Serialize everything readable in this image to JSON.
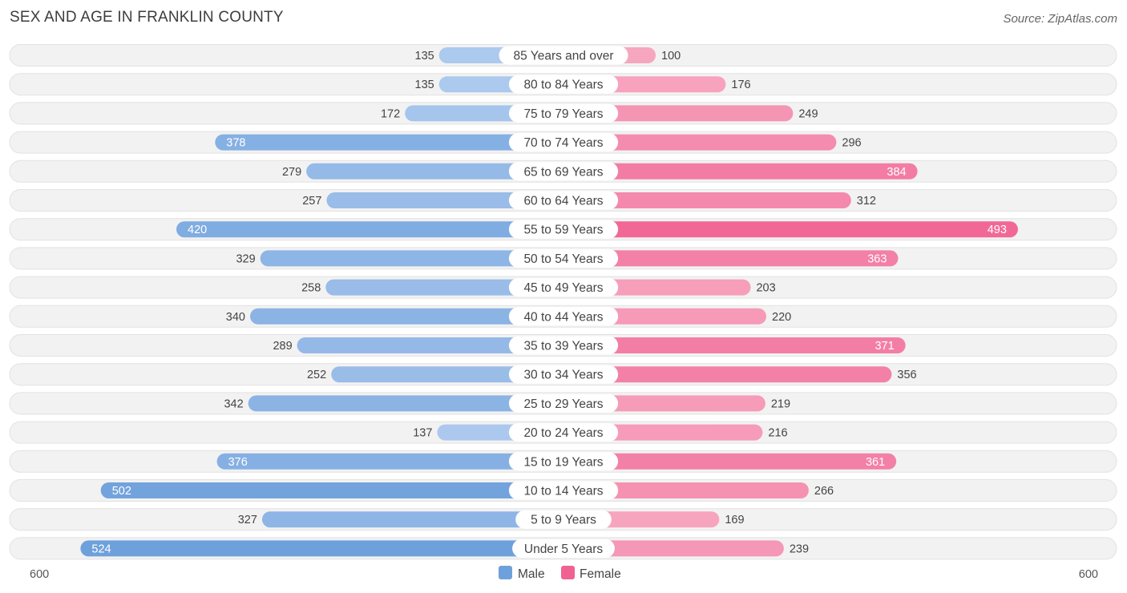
{
  "header": {
    "title": "SEX AND AGE IN FRANKLIN COUNTY",
    "source": "Source: ZipAtlas.com"
  },
  "colors": {
    "male_strong": "#6ea1dc",
    "male_light": "#adc9ee",
    "female_strong": "#f06292",
    "female_light": "#f7a6c0",
    "row_bg": "#f2f2f2",
    "row_border": "#e2e2e2"
  },
  "chart_data": {
    "type": "bar",
    "orientation": "horizontal-diverging",
    "categories": [
      "85 Years and over",
      "80 to 84 Years",
      "75 to 79 Years",
      "70 to 74 Years",
      "65 to 69 Years",
      "60 to 64 Years",
      "55 to 59 Years",
      "50 to 54 Years",
      "45 to 49 Years",
      "40 to 44 Years",
      "35 to 39 Years",
      "30 to 34 Years",
      "25 to 29 Years",
      "20 to 24 Years",
      "15 to 19 Years",
      "10 to 14 Years",
      "5 to 9 Years",
      "Under 5 Years"
    ],
    "series": [
      {
        "name": "Male",
        "values": [
          135,
          135,
          172,
          378,
          279,
          257,
          420,
          329,
          258,
          340,
          289,
          252,
          342,
          137,
          376,
          502,
          327,
          524
        ]
      },
      {
        "name": "Female",
        "values": [
          100,
          176,
          249,
          296,
          384,
          312,
          493,
          363,
          203,
          220,
          371,
          356,
          219,
          216,
          361,
          266,
          169,
          239
        ]
      }
    ],
    "axis": {
      "left_label": "600",
      "right_label": "600",
      "max": 600
    },
    "legend": {
      "position": "bottom-center",
      "items": [
        "Male",
        "Female"
      ]
    }
  }
}
